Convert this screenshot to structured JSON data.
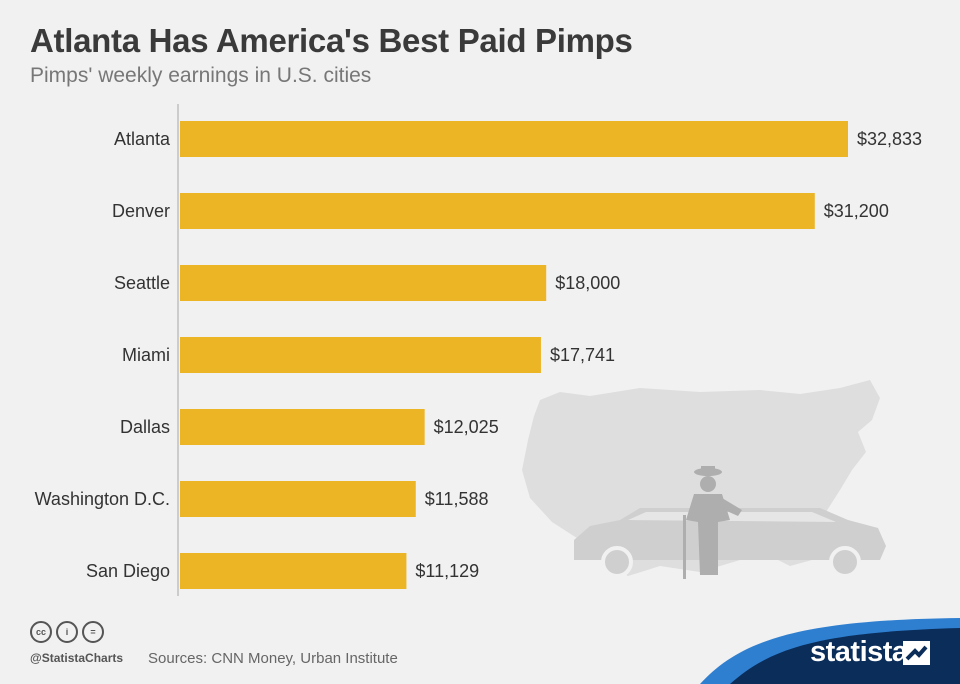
{
  "header": {
    "title": "Atlanta Has America's Best Paid Pimps",
    "subtitle": "Pimps' weekly earnings in U.S. cities"
  },
  "chart_data": {
    "type": "bar",
    "orientation": "horizontal",
    "categories": [
      "Atlanta",
      "Denver",
      "Seattle",
      "Miami",
      "Dallas",
      "Washington D.C.",
      "San Diego"
    ],
    "values": [
      32833,
      31200,
      18000,
      17741,
      12025,
      11588,
      11129
    ],
    "value_labels": [
      "$32,833",
      "$31,200",
      "$18,000",
      "$17,741",
      "$12,025",
      "$11,588",
      "$11,129"
    ],
    "title": "Atlanta Has America's Best Paid Pimps",
    "subtitle": "Pimps' weekly earnings in U.S. cities",
    "xlim": [
      0,
      32833
    ],
    "grid": false,
    "bar_color": "#ecb526"
  },
  "footer": {
    "cc_icons": [
      "cc-icon",
      "by-icon",
      "nd-icon"
    ],
    "cc_text": [
      "cc",
      "i",
      "="
    ],
    "handle": "@StatistaCharts",
    "source": "Sources: CNN Money, Urban Institute"
  },
  "brand": {
    "name": "statista",
    "accent": "#0a2d5a",
    "wave": "#2f7fd1"
  },
  "illustration": {
    "icons": [
      "usa-map-silhouette",
      "pimp-figure-silhouette",
      "limousine-silhouette"
    ]
  }
}
